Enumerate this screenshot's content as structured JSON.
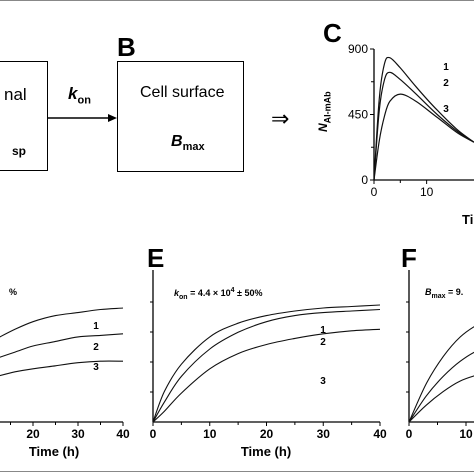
{
  "diagram": {
    "box_left": {
      "line1": "nal",
      "line2": "sp"
    },
    "arrow": {
      "k": "k",
      "sub": "on"
    },
    "box_right": {
      "line1": "Cell surface",
      "b": "B",
      "sub": "max"
    },
    "implies": "⇒",
    "letters": {
      "b": "B",
      "c": "C",
      "e": "E",
      "f": "F"
    }
  },
  "panel_c": {
    "ylabel_main": "N",
    "ylabel_sub": "AI-mAb",
    "xlabel": "Ti",
    "yticks": [
      "900",
      "450",
      "0"
    ],
    "xticks": [
      "0",
      "10"
    ],
    "curve_labels": [
      "1",
      "2",
      "3"
    ]
  },
  "panel_d": {
    "annotation": "%",
    "xticks": [
      "20",
      "30",
      "40"
    ],
    "xlabel": "Time (h)",
    "curve_labels": [
      "1",
      "2",
      "3"
    ]
  },
  "panel_e": {
    "annotation_k": "k",
    "annotation_sub": "on",
    "annotation_rest": " = 4.4 × 10",
    "annotation_exp": "4",
    "annotation_tail": " ± 50%",
    "xticks": [
      "0",
      "10",
      "20",
      "30",
      "40"
    ],
    "xlabel": "Time (h)",
    "curve_labels": [
      "1",
      "2",
      "3"
    ]
  },
  "panel_f": {
    "annotation_b": "B",
    "annotation_sub": "max",
    "annotation_rest": " = 9.",
    "xticks": [
      "0",
      "10"
    ]
  },
  "chart_data": [
    {
      "type": "line",
      "panel": "C",
      "xlabel": "Ti",
      "ylabel": "N AI-mAb",
      "xlim": [
        0,
        19
      ],
      "ylim": [
        0,
        900
      ],
      "series": [
        {
          "name": "1",
          "x": [
            0,
            1,
            2,
            3,
            5,
            8,
            12,
            16,
            19
          ],
          "values": [
            0,
            560,
            800,
            840,
            770,
            640,
            480,
            340,
            260
          ]
        },
        {
          "name": "2",
          "x": [
            0,
            1,
            2,
            3,
            5,
            8,
            12,
            16,
            19
          ],
          "values": [
            0,
            480,
            690,
            740,
            690,
            590,
            450,
            330,
            260
          ]
        },
        {
          "name": "3",
          "x": [
            0,
            1,
            2,
            3,
            5,
            8,
            12,
            16,
            19
          ],
          "values": [
            0,
            270,
            440,
            540,
            590,
            540,
            430,
            320,
            260
          ]
        }
      ]
    },
    {
      "type": "line",
      "panel": "D",
      "xlabel": "Time (h)",
      "xlim": [
        12,
        40
      ],
      "ylim": [
        0,
        1
      ],
      "series": [
        {
          "name": "1",
          "x": [
            12,
            16,
            20,
            25,
            30,
            35,
            40
          ],
          "values": [
            0.55,
            0.61,
            0.66,
            0.7,
            0.72,
            0.74,
            0.75
          ]
        },
        {
          "name": "2",
          "x": [
            12,
            16,
            20,
            25,
            30,
            35,
            40
          ],
          "values": [
            0.42,
            0.46,
            0.5,
            0.53,
            0.56,
            0.57,
            0.58
          ]
        },
        {
          "name": "3",
          "x": [
            12,
            16,
            20,
            25,
            30,
            35,
            40
          ],
          "values": [
            0.3,
            0.33,
            0.35,
            0.37,
            0.39,
            0.4,
            0.4
          ]
        }
      ]
    },
    {
      "type": "line",
      "panel": "E",
      "xlabel": "Time (h)",
      "xlim": [
        0,
        40
      ],
      "ylim": [
        0,
        1
      ],
      "series": [
        {
          "name": "1",
          "x": [
            0,
            2,
            5,
            10,
            15,
            20,
            25,
            30,
            35,
            40
          ],
          "values": [
            0,
            0.2,
            0.38,
            0.56,
            0.65,
            0.7,
            0.73,
            0.75,
            0.76,
            0.77
          ]
        },
        {
          "name": "2",
          "x": [
            0,
            2,
            5,
            10,
            15,
            20,
            25,
            30,
            35,
            40
          ],
          "values": [
            0,
            0.13,
            0.3,
            0.48,
            0.59,
            0.66,
            0.7,
            0.72,
            0.73,
            0.74
          ]
        },
        {
          "name": "3",
          "x": [
            0,
            2,
            5,
            10,
            15,
            20,
            25,
            30,
            35,
            40
          ],
          "values": [
            0,
            0.07,
            0.19,
            0.35,
            0.45,
            0.51,
            0.55,
            0.58,
            0.6,
            0.61
          ]
        }
      ]
    },
    {
      "type": "line",
      "panel": "F",
      "xlim": [
        0,
        15
      ],
      "ylim": [
        0,
        1
      ],
      "series": [
        {
          "x": [
            0,
            3,
            6,
            9,
            12,
            15
          ],
          "values": [
            0,
            0.25,
            0.43,
            0.56,
            0.64,
            0.69
          ]
        },
        {
          "x": [
            0,
            3,
            6,
            9,
            12,
            15
          ],
          "values": [
            0,
            0.17,
            0.3,
            0.4,
            0.47,
            0.51
          ]
        },
        {
          "x": [
            0,
            3,
            6,
            9,
            12,
            15
          ],
          "values": [
            0,
            0.11,
            0.2,
            0.27,
            0.31,
            0.34
          ]
        }
      ]
    }
  ]
}
